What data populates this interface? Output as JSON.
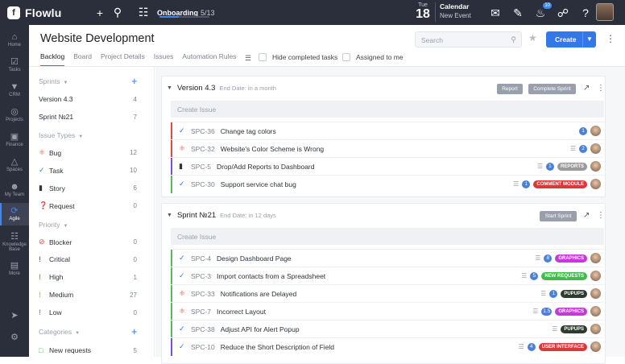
{
  "topbar": {
    "logo_text": "Flowlu",
    "onboarding_label": "Onboarding",
    "onboarding_progress": "5/13",
    "date_day": "Tue",
    "date_num": "18",
    "calendar_title": "Calendar",
    "calendar_sub": "New Event",
    "notif_count": "10"
  },
  "rail": [
    {
      "label": "Home"
    },
    {
      "label": "Tasks"
    },
    {
      "label": "CRM"
    },
    {
      "label": "Projects"
    },
    {
      "label": "Finance"
    },
    {
      "label": "Spaces"
    },
    {
      "label": "My Team"
    },
    {
      "label": "Agile"
    },
    {
      "label": "Knowledge Base"
    },
    {
      "label": "More"
    }
  ],
  "header": {
    "title": "Website Development",
    "search_placeholder": "Search",
    "create_label": "Create",
    "tabs": [
      "Backlog",
      "Board",
      "Project Details",
      "Issues",
      "Automation Rules"
    ],
    "hide_completed": "Hide completed tasks",
    "assigned_to_me": "Assigned to me"
  },
  "sidebar": {
    "sprints_title": "Sprints",
    "sprints": [
      {
        "label": "Version 4.3",
        "count": "4"
      },
      {
        "label": "Sprint №21",
        "count": "7"
      }
    ],
    "types_title": "Issue Types",
    "types": [
      {
        "label": "Bug",
        "count": "12"
      },
      {
        "label": "Task",
        "count": "10"
      },
      {
        "label": "Story",
        "count": "6"
      },
      {
        "label": "Request",
        "count": "0"
      }
    ],
    "priority_title": "Priority",
    "priorities": [
      {
        "label": "Blocker",
        "count": "0"
      },
      {
        "label": "Critical",
        "count": "0"
      },
      {
        "label": "High",
        "count": "1"
      },
      {
        "label": "Medium",
        "count": "27"
      },
      {
        "label": "Low",
        "count": "0"
      }
    ],
    "categories_title": "Categories",
    "categories": [
      {
        "label": "New requests",
        "count": "5"
      }
    ]
  },
  "version": {
    "title": "Version 4.3",
    "date": "End Date: in a month",
    "report_btn": "Report",
    "complete_btn": "Complete Sprint",
    "create_issue": "Create Issue",
    "rows": [
      {
        "key": "SPC-36",
        "title": "Change tag colors",
        "pts": "1",
        "tag": "",
        "bar": "#e04848",
        "icon": "check"
      },
      {
        "key": "SPC-32",
        "title": "Website's Color Scheme is Wrong",
        "pts": "2",
        "tag": "",
        "bar": "#e04848",
        "icon": "bug"
      },
      {
        "key": "SPC-5",
        "title": "Drop/Add Reports to Dashboard",
        "pts": "1",
        "tag": "REPORTS",
        "tag_color": "#9a9a9a",
        "bar": "#7b4fcf",
        "icon": "story"
      },
      {
        "key": "SPC-30",
        "title": "Support service chat bug",
        "pts": "1",
        "tag": "COMMENT MODULE",
        "tag_color": "#d63a3a",
        "bar": "#5cb85c",
        "icon": "check"
      }
    ]
  },
  "sprint": {
    "title": "Sprint №21",
    "date": "End Date: in 12 days",
    "start_btn": "Start Sprint",
    "create_issue": "Create Issue",
    "rows": [
      {
        "key": "SPC-4",
        "title": "Design Dashboard Page",
        "pts": "8",
        "tag": "GRAPHICS",
        "tag_color": "#c53ad6",
        "bar": "#5cb85c",
        "icon": "check"
      },
      {
        "key": "SPC-3",
        "title": "Import contacts from a Spreadsheet",
        "pts": "5",
        "tag": "NEW REQUESTS",
        "tag_color": "#47b84d",
        "bar": "#5cb85c",
        "icon": "check"
      },
      {
        "key": "SPC-33",
        "title": "Notifications are Delayed",
        "pts": "1",
        "tag": "PUPUPS",
        "tag_color": "#2f3b2f",
        "bar": "#5cb85c",
        "icon": "bug"
      },
      {
        "key": "SPC-7",
        "title": "Incorrect Layout",
        "pts": "1.5",
        "tag": "GRAPHICS",
        "tag_color": "#c53ad6",
        "bar": "#5cb85c",
        "icon": "bug"
      },
      {
        "key": "SPC-38",
        "title": "Adjust API for Alert Popup",
        "pts": "",
        "tag": "PUPUPS",
        "tag_color": "#2f3b2f",
        "bar": "#5cb85c",
        "icon": "check"
      },
      {
        "key": "SPC-10",
        "title": "Reduce the Short Description of Field",
        "pts": "4",
        "tag": "USER INTERFACE",
        "tag_color": "#d63a3a",
        "bar": "#7b4fcf",
        "icon": "check"
      }
    ]
  }
}
